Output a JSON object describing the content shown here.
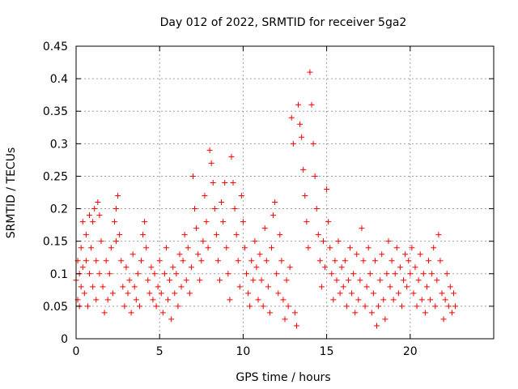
{
  "chart_data": {
    "type": "scatter",
    "title": "Day 012 of 2022, SRMTID for receiver 5ga2",
    "xlabel": "GPS time / hours",
    "ylabel": "SRMTID / TECUs",
    "xlim": [
      0,
      25
    ],
    "ylim": [
      0,
      0.45
    ],
    "xticks": [
      0,
      5,
      10,
      15,
      20
    ],
    "yticks": [
      0,
      0.05,
      0.1,
      0.15,
      0.2,
      0.25,
      0.3,
      0.35,
      0.4,
      0.45
    ],
    "xtick_labels": [
      "0",
      "5",
      "10",
      "15",
      "20"
    ],
    "ytick_labels": [
      "0",
      "0.05",
      "0.1",
      "0.15",
      "0.2",
      "0.25",
      "0.3",
      "0.35",
      "0.4",
      "0.45"
    ],
    "grid": true,
    "marker": "+",
    "color": "#ff0000",
    "series": [
      {
        "name": "SRMTID",
        "points": [
          [
            0.0,
            0.09
          ],
          [
            0.1,
            0.12
          ],
          [
            0.1,
            0.06
          ],
          [
            0.2,
            0.05
          ],
          [
            0.2,
            0.1
          ],
          [
            0.3,
            0.14
          ],
          [
            0.3,
            0.08
          ],
          [
            0.4,
            0.18
          ],
          [
            0.4,
            0.11
          ],
          [
            0.5,
            0.07
          ],
          [
            0.6,
            0.16
          ],
          [
            0.6,
            0.12
          ],
          [
            0.7,
            0.05
          ],
          [
            0.8,
            0.19
          ],
          [
            0.8,
            0.1
          ],
          [
            0.9,
            0.14
          ],
          [
            1.0,
            0.08
          ],
          [
            1.0,
            0.18
          ],
          [
            1.1,
            0.2
          ],
          [
            1.2,
            0.12
          ],
          [
            1.2,
            0.06
          ],
          [
            1.3,
            0.21
          ],
          [
            1.4,
            0.19
          ],
          [
            1.4,
            0.1
          ],
          [
            1.5,
            0.15
          ],
          [
            1.6,
            0.08
          ],
          [
            1.7,
            0.04
          ],
          [
            1.8,
            0.12
          ],
          [
            1.9,
            0.06
          ],
          [
            2.0,
            0.1
          ],
          [
            2.1,
            0.14
          ],
          [
            2.2,
            0.07
          ],
          [
            2.3,
            0.18
          ],
          [
            2.4,
            0.2
          ],
          [
            2.4,
            0.15
          ],
          [
            2.5,
            0.22
          ],
          [
            2.6,
            0.16
          ],
          [
            2.7,
            0.12
          ],
          [
            2.8,
            0.08
          ],
          [
            2.9,
            0.05
          ],
          [
            3.0,
            0.11
          ],
          [
            3.1,
            0.07
          ],
          [
            3.2,
            0.09
          ],
          [
            3.3,
            0.04
          ],
          [
            3.4,
            0.13
          ],
          [
            3.5,
            0.08
          ],
          [
            3.6,
            0.06
          ],
          [
            3.7,
            0.1
          ],
          [
            3.8,
            0.05
          ],
          [
            3.9,
            0.12
          ],
          [
            4.0,
            0.16
          ],
          [
            4.1,
            0.18
          ],
          [
            4.2,
            0.14
          ],
          [
            4.3,
            0.09
          ],
          [
            4.4,
            0.07
          ],
          [
            4.5,
            0.11
          ],
          [
            4.6,
            0.06
          ],
          [
            4.7,
            0.1
          ],
          [
            4.8,
            0.05
          ],
          [
            4.9,
            0.08
          ],
          [
            5.0,
            0.12
          ],
          [
            5.1,
            0.07
          ],
          [
            5.2,
            0.04
          ],
          [
            5.3,
            0.1
          ],
          [
            5.4,
            0.14
          ],
          [
            5.5,
            0.06
          ],
          [
            5.6,
            0.09
          ],
          [
            5.7,
            0.03
          ],
          [
            5.8,
            0.11
          ],
          [
            5.9,
            0.07
          ],
          [
            6.0,
            0.1
          ],
          [
            6.1,
            0.05
          ],
          [
            6.2,
            0.13
          ],
          [
            6.3,
            0.08
          ],
          [
            6.4,
            0.12
          ],
          [
            6.5,
            0.16
          ],
          [
            6.6,
            0.09
          ],
          [
            6.7,
            0.14
          ],
          [
            6.8,
            0.07
          ],
          [
            6.9,
            0.11
          ],
          [
            7.0,
            0.25
          ],
          [
            7.1,
            0.2
          ],
          [
            7.2,
            0.17
          ],
          [
            7.3,
            0.13
          ],
          [
            7.4,
            0.09
          ],
          [
            7.5,
            0.12
          ],
          [
            7.6,
            0.15
          ],
          [
            7.7,
            0.22
          ],
          [
            7.8,
            0.18
          ],
          [
            7.9,
            0.14
          ],
          [
            8.0,
            0.29
          ],
          [
            8.1,
            0.27
          ],
          [
            8.2,
            0.24
          ],
          [
            8.3,
            0.2
          ],
          [
            8.4,
            0.16
          ],
          [
            8.5,
            0.12
          ],
          [
            8.6,
            0.09
          ],
          [
            8.7,
            0.21
          ],
          [
            8.8,
            0.18
          ],
          [
            8.9,
            0.24
          ],
          [
            9.0,
            0.14
          ],
          [
            9.1,
            0.1
          ],
          [
            9.2,
            0.06
          ],
          [
            9.3,
            0.28
          ],
          [
            9.4,
            0.24
          ],
          [
            9.5,
            0.2
          ],
          [
            9.6,
            0.16
          ],
          [
            9.7,
            0.12
          ],
          [
            9.8,
            0.08
          ],
          [
            9.9,
            0.22
          ],
          [
            10.0,
            0.18
          ],
          [
            10.1,
            0.14
          ],
          [
            10.2,
            0.1
          ],
          [
            10.3,
            0.07
          ],
          [
            10.4,
            0.05
          ],
          [
            10.5,
            0.12
          ],
          [
            10.6,
            0.09
          ],
          [
            10.7,
            0.15
          ],
          [
            10.8,
            0.11
          ],
          [
            10.9,
            0.06
          ],
          [
            11.0,
            0.13
          ],
          [
            11.1,
            0.09
          ],
          [
            11.2,
            0.05
          ],
          [
            11.3,
            0.17
          ],
          [
            11.4,
            0.12
          ],
          [
            11.5,
            0.08
          ],
          [
            11.6,
            0.04
          ],
          [
            11.7,
            0.14
          ],
          [
            11.8,
            0.19
          ],
          [
            11.9,
            0.21
          ],
          [
            12.0,
            0.1
          ],
          [
            12.1,
            0.07
          ],
          [
            12.2,
            0.16
          ],
          [
            12.3,
            0.12
          ],
          [
            12.4,
            0.06
          ],
          [
            12.5,
            0.03
          ],
          [
            12.6,
            0.09
          ],
          [
            12.7,
            0.05
          ],
          [
            12.8,
            0.11
          ],
          [
            12.9,
            0.34
          ],
          [
            13.0,
            0.3
          ],
          [
            13.1,
            0.04
          ],
          [
            13.2,
            0.02
          ],
          [
            13.3,
            0.36
          ],
          [
            13.4,
            0.33
          ],
          [
            13.5,
            0.31
          ],
          [
            13.6,
            0.26
          ],
          [
            13.7,
            0.22
          ],
          [
            13.8,
            0.18
          ],
          [
            13.9,
            0.14
          ],
          [
            14.0,
            0.41
          ],
          [
            14.1,
            0.36
          ],
          [
            14.2,
            0.3
          ],
          [
            14.3,
            0.25
          ],
          [
            14.4,
            0.2
          ],
          [
            14.5,
            0.16
          ],
          [
            14.6,
            0.12
          ],
          [
            14.7,
            0.08
          ],
          [
            14.8,
            0.15
          ],
          [
            14.9,
            0.11
          ],
          [
            15.0,
            0.23
          ],
          [
            15.1,
            0.18
          ],
          [
            15.2,
            0.14
          ],
          [
            15.3,
            0.1
          ],
          [
            15.4,
            0.06
          ],
          [
            15.5,
            0.12
          ],
          [
            15.6,
            0.09
          ],
          [
            15.7,
            0.15
          ],
          [
            15.8,
            0.07
          ],
          [
            15.9,
            0.11
          ],
          [
            16.0,
            0.08
          ],
          [
            16.1,
            0.12
          ],
          [
            16.2,
            0.05
          ],
          [
            16.3,
            0.09
          ],
          [
            16.4,
            0.14
          ],
          [
            16.5,
            0.07
          ],
          [
            16.6,
            0.1
          ],
          [
            16.7,
            0.04
          ],
          [
            16.8,
            0.13
          ],
          [
            16.9,
            0.06
          ],
          [
            17.0,
            0.09
          ],
          [
            17.1,
            0.17
          ],
          [
            17.2,
            0.12
          ],
          [
            17.3,
            0.05
          ],
          [
            17.4,
            0.08
          ],
          [
            17.5,
            0.14
          ],
          [
            17.6,
            0.1
          ],
          [
            17.7,
            0.04
          ],
          [
            17.8,
            0.07
          ],
          [
            17.9,
            0.12
          ],
          [
            18.0,
            0.02
          ],
          [
            18.1,
            0.05
          ],
          [
            18.2,
            0.09
          ],
          [
            18.3,
            0.13
          ],
          [
            18.4,
            0.06
          ],
          [
            18.5,
            0.03
          ],
          [
            18.6,
            0.1
          ],
          [
            18.7,
            0.15
          ],
          [
            18.8,
            0.08
          ],
          [
            18.9,
            0.12
          ],
          [
            19.0,
            0.06
          ],
          [
            19.1,
            0.1
          ],
          [
            19.2,
            0.14
          ],
          [
            19.3,
            0.07
          ],
          [
            19.4,
            0.11
          ],
          [
            19.5,
            0.05
          ],
          [
            19.6,
            0.09
          ],
          [
            19.7,
            0.13
          ],
          [
            19.8,
            0.08
          ],
          [
            19.9,
            0.12
          ],
          [
            20.0,
            0.1
          ],
          [
            20.1,
            0.14
          ],
          [
            20.2,
            0.07
          ],
          [
            20.3,
            0.11
          ],
          [
            20.4,
            0.05
          ],
          [
            20.5,
            0.09
          ],
          [
            20.6,
            0.13
          ],
          [
            20.7,
            0.06
          ],
          [
            20.8,
            0.1
          ],
          [
            20.9,
            0.04
          ],
          [
            21.0,
            0.08
          ],
          [
            21.1,
            0.12
          ],
          [
            21.2,
            0.06
          ],
          [
            21.3,
            0.1
          ],
          [
            21.4,
            0.14
          ],
          [
            21.5,
            0.05
          ],
          [
            21.6,
            0.09
          ],
          [
            21.7,
            0.16
          ],
          [
            21.8,
            0.12
          ],
          [
            21.9,
            0.07
          ],
          [
            22.0,
            0.03
          ],
          [
            22.1,
            0.06
          ],
          [
            22.2,
            0.1
          ],
          [
            22.3,
            0.05
          ],
          [
            22.4,
            0.08
          ],
          [
            22.5,
            0.04
          ],
          [
            22.6,
            0.07
          ],
          [
            22.7,
            0.05
          ]
        ]
      }
    ]
  }
}
